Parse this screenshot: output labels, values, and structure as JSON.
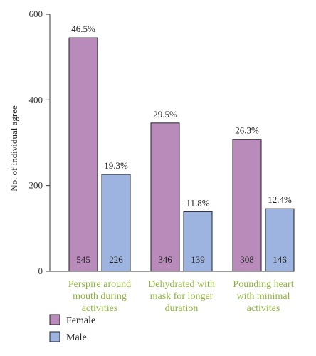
{
  "chart_data": {
    "type": "bar",
    "categories": [
      [
        "Perspire around",
        "mouth during",
        "activities"
      ],
      [
        "Dehydrated with",
        "mask for longer",
        "duration"
      ],
      [
        "Pounding heart",
        "with minimal",
        "activites"
      ]
    ],
    "series": [
      {
        "name": "Female",
        "color": "#b98bbb",
        "values": [
          545,
          346,
          308
        ],
        "percent_labels": [
          "46.5%",
          "29.5%",
          "26.3%"
        ]
      },
      {
        "name": "Male",
        "color": "#9db4e0",
        "values": [
          226,
          139,
          146
        ],
        "percent_labels": [
          "19.3%",
          "11.8%",
          "12.4%"
        ]
      }
    ],
    "ylabel": "No. of individual agree",
    "ylim": [
      0,
      600
    ],
    "yticks": [
      0,
      200,
      400,
      600
    ],
    "category_label_color": "#8db43a",
    "legend_position": "bottom-left"
  }
}
